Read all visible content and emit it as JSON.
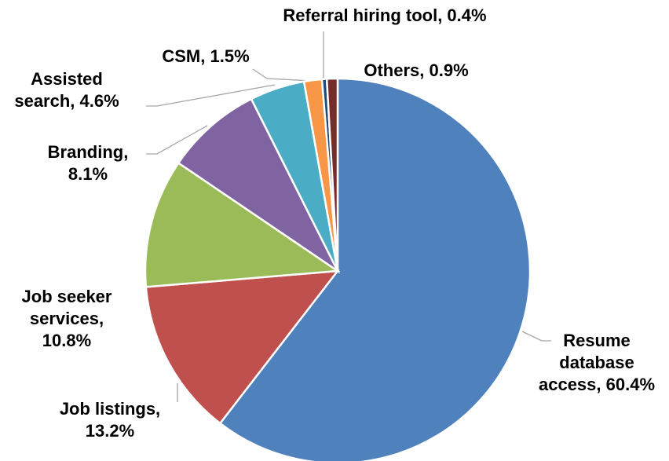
{
  "chart_data": {
    "type": "pie",
    "labels": [
      "Resume database access, 60.4%",
      "Job listings, 13.2%",
      "Job seeker services, 10.8%",
      "Branding, 8.1%",
      "Assisted search, 4.6%",
      "CSM, 1.5%",
      "Referral hiring tool, 0.4%",
      "Others, 0.9%"
    ],
    "values": [
      60.4,
      13.2,
      10.8,
      8.1,
      4.6,
      1.5,
      0.4,
      0.9
    ],
    "colors": [
      "#4f81bd",
      "#c0504d",
      "#9bbb59",
      "#8064a2",
      "#4bacc6",
      "#f79646",
      "#1f497d",
      "#772c2a"
    ]
  }
}
